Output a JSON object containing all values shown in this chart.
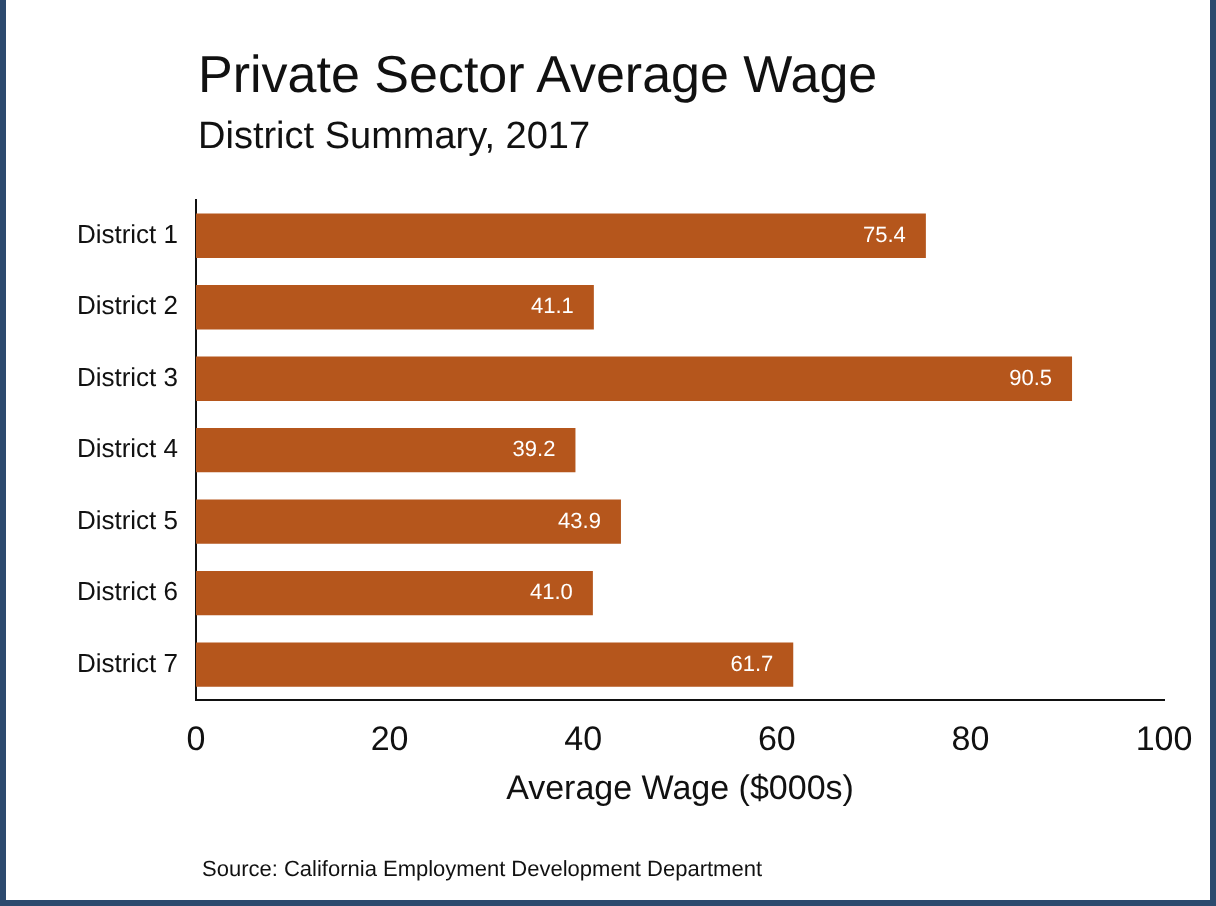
{
  "chart_data": {
    "type": "bar",
    "orientation": "horizontal",
    "title": "Private Sector Average Wage",
    "subtitle": "District Summary, 2017",
    "xlabel": "Average Wage ($000s)",
    "categories": [
      "District 1",
      "District 2",
      "District 3",
      "District 4",
      "District 5",
      "District 6",
      "District 7"
    ],
    "values": [
      75.4,
      41.1,
      90.5,
      39.2,
      43.9,
      41.0,
      61.7
    ],
    "value_labels": [
      "75.4",
      "41.1",
      "90.5",
      "39.2",
      "43.9",
      "41.0",
      "61.7"
    ],
    "color": "#b5561c",
    "xlim": [
      0,
      100
    ],
    "xticks": [
      0,
      20,
      40,
      60,
      80,
      100
    ],
    "grid": false,
    "legend": false,
    "annotations": [
      "Source: California Employment Development Department"
    ]
  }
}
